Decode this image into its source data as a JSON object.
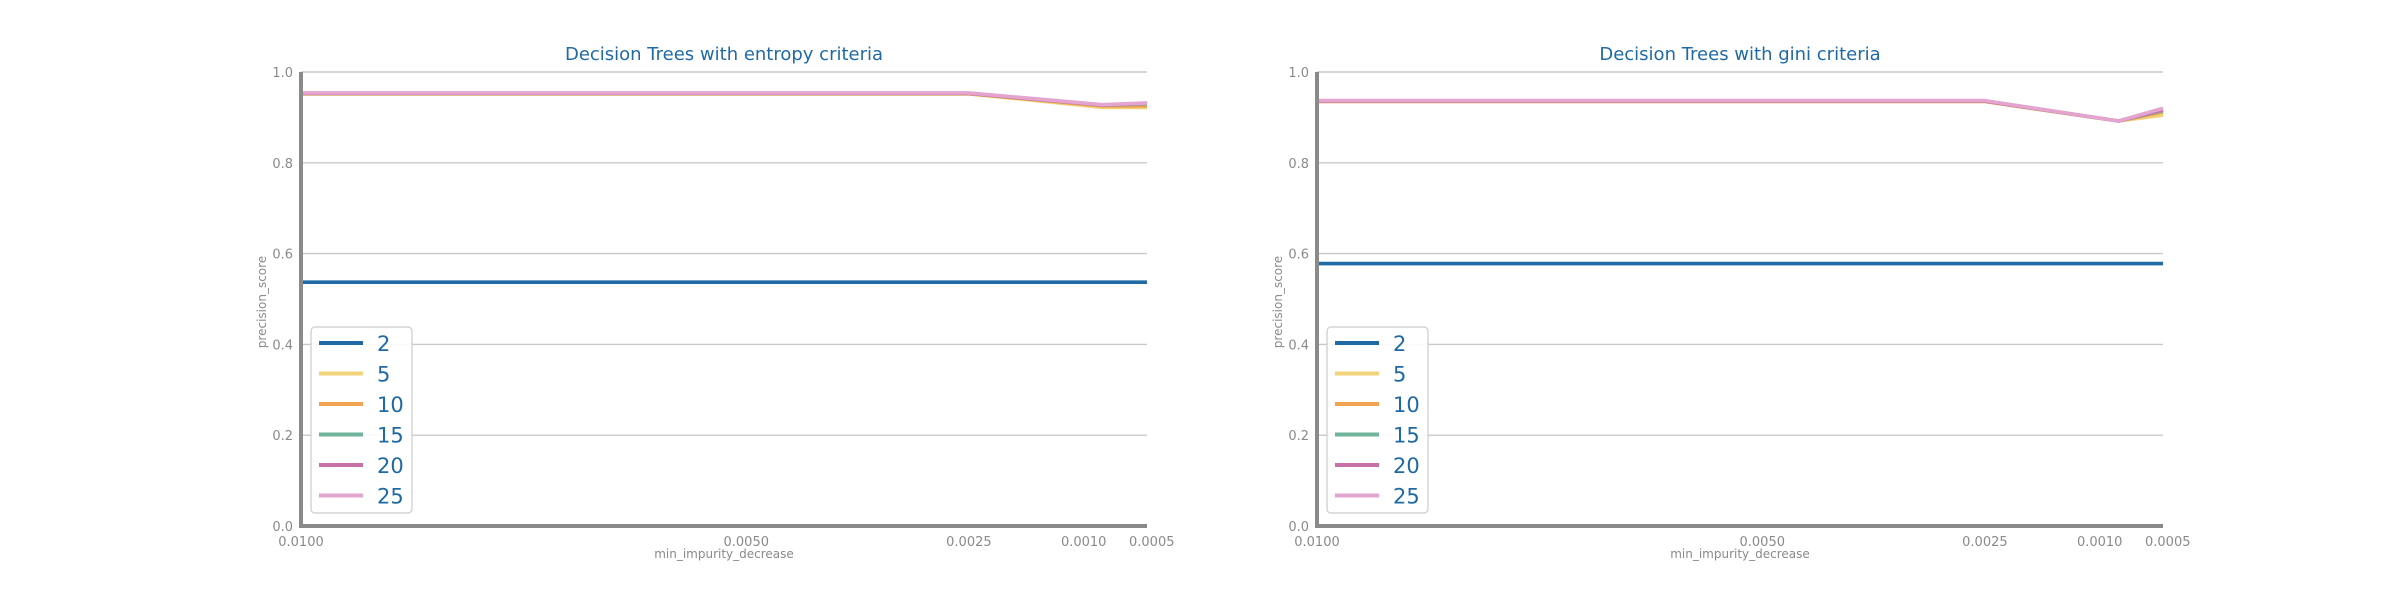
{
  "colors": {
    "title": "#1f6aa5",
    "axis": "#8a8a8a",
    "grid": "#c8c8c8",
    "legend_text": "#1f6aa5"
  },
  "chart_data": [
    {
      "type": "line",
      "title": "Decision Trees with entropy criteria",
      "xlabel": "min_impurity_decrease",
      "ylabel": "precision_score",
      "x": [
        0.01,
        0.005,
        0.0025,
        0.001,
        0.0005
      ],
      "x_tick_labels": [
        "0.0100",
        "0.0050",
        "0.0025",
        "0.0010",
        "0.0005"
      ],
      "y_ticks": [
        0.0,
        0.2,
        0.4,
        0.6,
        0.8,
        1.0
      ],
      "y_tick_labels": [
        "0.0",
        "0.2",
        "0.4",
        "0.6",
        "0.8",
        "1.0"
      ],
      "ylim": [
        0,
        1
      ],
      "grid": true,
      "legend_position": "lower-left",
      "series": [
        {
          "name": "2",
          "color": "#1f6aa5",
          "values": [
            0.537,
            0.537,
            0.537,
            0.537,
            0.537
          ]
        },
        {
          "name": "5",
          "color": "#f2d379",
          "values": [
            0.952,
            0.952,
            0.952,
            0.922,
            0.922
          ]
        },
        {
          "name": "10",
          "color": "#f0a350",
          "values": [
            0.952,
            0.952,
            0.952,
            0.925,
            0.925
          ]
        },
        {
          "name": "15",
          "color": "#6fb39a",
          "values": [
            0.953,
            0.953,
            0.953,
            0.927,
            0.93
          ]
        },
        {
          "name": "20",
          "color": "#c970a6",
          "values": [
            0.953,
            0.953,
            0.953,
            0.927,
            0.931
          ]
        },
        {
          "name": "25",
          "color": "#e3a4d0",
          "values": [
            0.954,
            0.954,
            0.954,
            0.928,
            0.932
          ]
        }
      ]
    },
    {
      "type": "line",
      "title": "Decision Trees with gini criteria",
      "xlabel": "min_impurity_decrease",
      "ylabel": "precision_score",
      "x": [
        0.01,
        0.005,
        0.0025,
        0.001,
        0.0005
      ],
      "x_tick_labels": [
        "0.0100",
        "0.0050",
        "0.0025",
        "0.0010",
        "0.0005"
      ],
      "y_ticks": [
        0.0,
        0.2,
        0.4,
        0.6,
        0.8,
        1.0
      ],
      "y_tick_labels": [
        "0.0",
        "0.2",
        "0.4",
        "0.6",
        "0.8",
        "1.0"
      ],
      "ylim": [
        0,
        1
      ],
      "grid": true,
      "legend_position": "lower-left",
      "series": [
        {
          "name": "2",
          "color": "#1f6aa5",
          "values": [
            0.578,
            0.578,
            0.578,
            0.578,
            0.578
          ]
        },
        {
          "name": "5",
          "color": "#f2d379",
          "values": [
            0.935,
            0.935,
            0.935,
            0.892,
            0.905
          ]
        },
        {
          "name": "10",
          "color": "#f0a350",
          "values": [
            0.935,
            0.935,
            0.935,
            0.892,
            0.912
          ]
        },
        {
          "name": "15",
          "color": "#6fb39a",
          "values": [
            0.936,
            0.936,
            0.936,
            0.892,
            0.915
          ]
        },
        {
          "name": "20",
          "color": "#c970a6",
          "values": [
            0.936,
            0.936,
            0.936,
            0.892,
            0.917
          ]
        },
        {
          "name": "25",
          "color": "#e3a4d0",
          "values": [
            0.937,
            0.937,
            0.937,
            0.892,
            0.92
          ]
        }
      ]
    }
  ]
}
